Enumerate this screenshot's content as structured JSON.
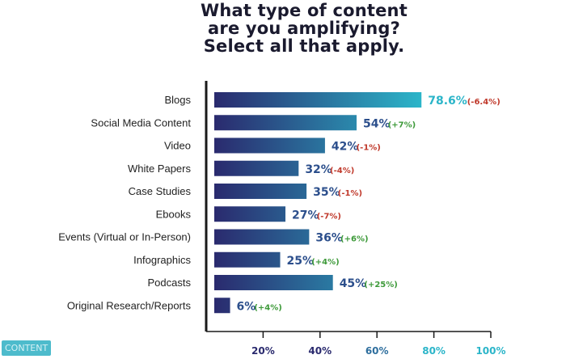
{
  "title_lines": [
    "What type of content",
    "are you amplifying?",
    "Select all that apply."
  ],
  "logo_text": "CONTENT",
  "chart_data": {
    "type": "bar",
    "orientation": "horizontal",
    "title": "What type of content are you amplifying? Select all that apply.",
    "categories": [
      "Blogs",
      "Social Media Content",
      "Video",
      "White Papers",
      "Case Studies",
      "Ebooks",
      "Events (Virtual or In-Person)",
      "Infographics",
      "Podcasts",
      "Original Research/Reports"
    ],
    "values": [
      78.6,
      54,
      42,
      32,
      35,
      27,
      36,
      25,
      45,
      6
    ],
    "value_labels": [
      "78.6%",
      "54%",
      "42%",
      "32%",
      "35%",
      "27%",
      "36%",
      "25%",
      "45%",
      "6%"
    ],
    "changes": [
      "(-6.4%)",
      "(+7%)",
      "(-1%)",
      "(-4%)",
      "(-1%)",
      "(-7%)",
      "(+6%)",
      "(+4%)",
      "(+25%)",
      "(+4%)"
    ],
    "xlim": [
      0,
      100
    ],
    "x_ticks": [
      "20%",
      "40%",
      "60%",
      "80%",
      "100%"
    ],
    "x_tick_values": [
      20,
      40,
      60,
      80,
      100
    ],
    "grid": false,
    "colors": {
      "bar_start": "#2a2a6e",
      "bar_end": "#2bb5c9",
      "negative": "#c0392b",
      "positive": "#3e9a3a",
      "axis": "#1a1a1a",
      "category_text": "#222222"
    }
  }
}
